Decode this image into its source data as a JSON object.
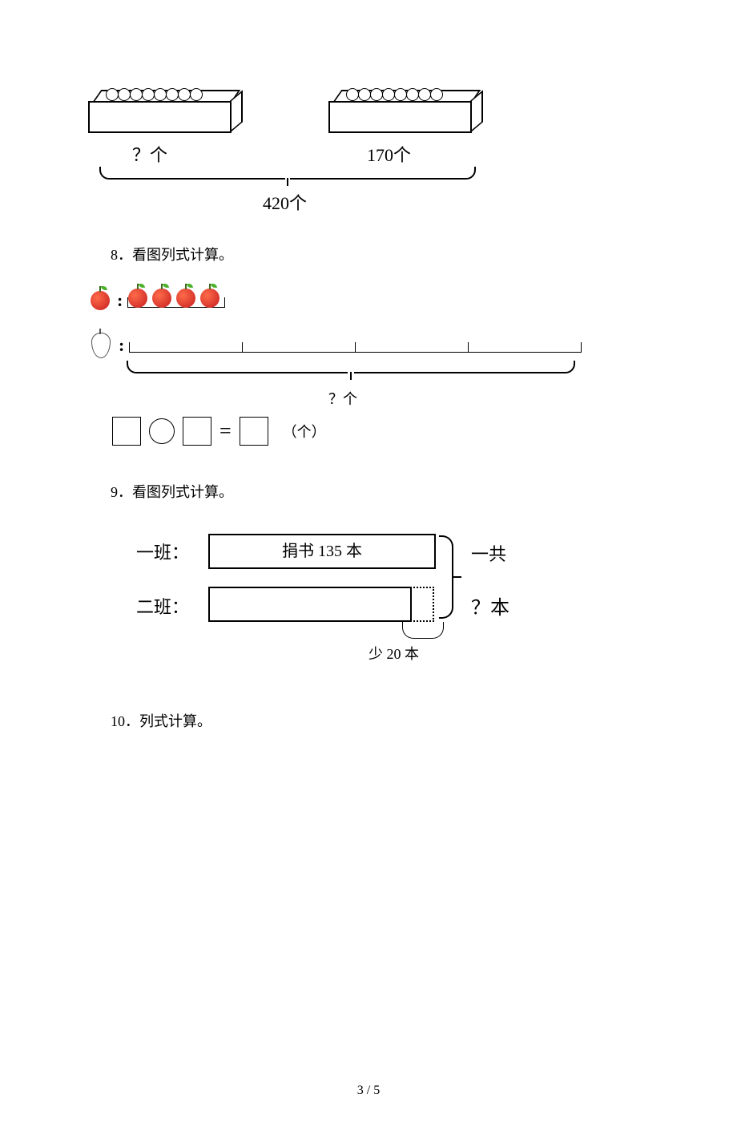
{
  "page_number": "3 / 5",
  "q7": {
    "left_label": "？个",
    "right_label": "170个",
    "total_label": "420个",
    "ball_count": 8
  },
  "q8": {
    "title": "8．看图列式计算。",
    "apple_count": 4,
    "apple_segment_width": 120,
    "pear_segments": 4,
    "pear_segment_width": 140,
    "question_label": "？个",
    "unit_label": "（个）"
  },
  "q9": {
    "title": "9．看图列式计算。",
    "class1_label": "一班：",
    "class2_label": "二班：",
    "bar1_text": "捐书 135 本",
    "total_top": "一共",
    "total_bottom": "？本",
    "less_label": "少 20 本"
  },
  "q10": {
    "title": "10．列式计算。"
  }
}
